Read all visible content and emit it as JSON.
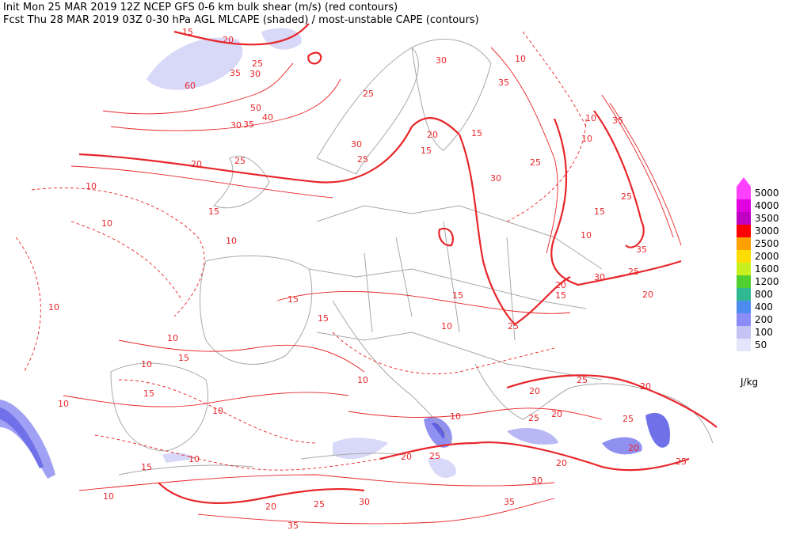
{
  "header": {
    "line1": "Init  Mon 25 MAR 2019 12Z  NCEP GFS 0-6 km bulk shear (m/s) (red contours)",
    "line2": "Fcst Thu 28 MAR 2019 03Z  0-30 hPa AGL MLCAPE (shaded) / most-unstable CAPE (contours)"
  },
  "contour_labels": [
    15,
    20,
    25,
    35,
    30,
    60,
    50,
    40,
    30,
    35,
    20,
    25,
    10,
    10,
    10,
    15,
    25,
    30,
    25,
    20,
    15,
    30,
    10,
    35,
    15,
    10,
    10,
    35,
    25,
    30,
    25,
    15,
    10,
    35,
    30,
    25,
    20,
    15,
    20,
    15,
    15,
    15,
    10,
    25,
    10,
    10,
    15,
    10,
    15,
    10,
    10,
    10,
    10,
    20,
    25,
    20,
    25,
    20,
    25,
    20,
    25,
    10,
    15,
    10,
    20,
    25,
    30,
    35,
    30,
    20,
    25,
    20,
    35
  ],
  "colorbar": {
    "levels": [
      50,
      100,
      200,
      400,
      800,
      1200,
      1600,
      2000,
      2500,
      3000,
      3500,
      4000,
      5000
    ],
    "colors": [
      "#e4e4fa",
      "#c4c4f4",
      "#8c8cf8",
      "#4c8cf0",
      "#30b890",
      "#50d030",
      "#c8f020",
      "#ffdc00",
      "#ffa000",
      "#ff0000",
      "#c000c0",
      "#e000e0",
      "#ff40ff"
    ],
    "units": "J/kg"
  }
}
